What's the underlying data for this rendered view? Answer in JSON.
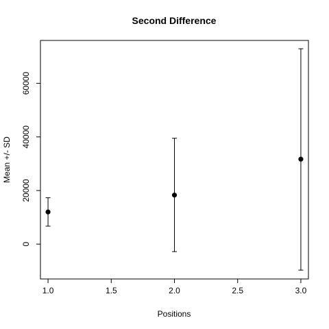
{
  "chart_data": {
    "type": "scatter",
    "title": "Second Difference",
    "xlabel": "Positions",
    "ylabel": "Mean +/- SD",
    "xlim": [
      0.94,
      3.06
    ],
    "ylim": [
      -13000,
      76000
    ],
    "xticks": [
      1.0,
      1.5,
      2.0,
      2.5,
      3.0
    ],
    "xtick_labels": [
      "1.0",
      "1.5",
      "2.0",
      "2.5",
      "3.0"
    ],
    "yticks": [
      0,
      20000,
      40000,
      60000
    ],
    "ytick_labels": [
      "0",
      "20000",
      "40000",
      "60000"
    ],
    "grid": false,
    "legend": "none",
    "points": [
      {
        "x": 1,
        "mean": 12000,
        "lower": 6700,
        "upper": 17300
      },
      {
        "x": 2,
        "mean": 18300,
        "lower": -2800,
        "upper": 39500
      },
      {
        "x": 3,
        "mean": 31700,
        "lower": -9700,
        "upper": 72900
      }
    ]
  }
}
